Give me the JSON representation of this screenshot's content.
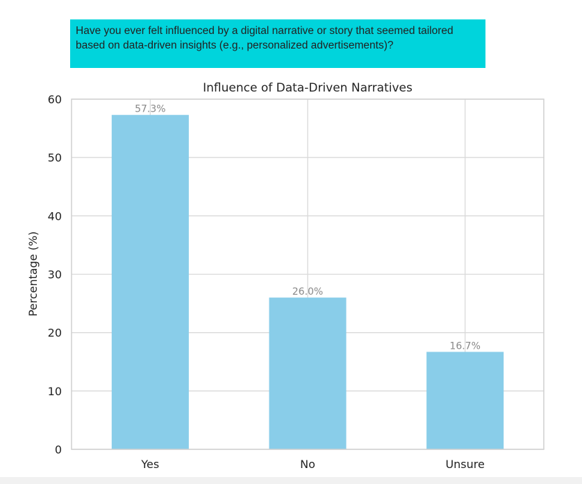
{
  "question": {
    "text": "Have you ever felt influenced by a digital narrative or story that seemed tailored based on data-driven insights (e.g., personalized advertisements)?"
  },
  "colors": {
    "question_bg": "#00d4dc",
    "bar": "#89cde9",
    "grid": "#d9d9d9",
    "label": "#888888"
  },
  "chart_data": {
    "type": "bar",
    "title": "Influence of Data-Driven Narratives",
    "xlabel": "",
    "ylabel": "Percentage (%)",
    "categories": [
      "Yes",
      "No",
      "Unsure"
    ],
    "values": [
      57.3,
      26.0,
      16.7
    ],
    "data_labels": [
      "57.3%",
      "26.0%",
      "16.7%"
    ],
    "ylim": [
      0,
      60
    ],
    "yticks": [
      "0",
      "10",
      "20",
      "30",
      "40",
      "50",
      "60"
    ],
    "grid": true
  }
}
